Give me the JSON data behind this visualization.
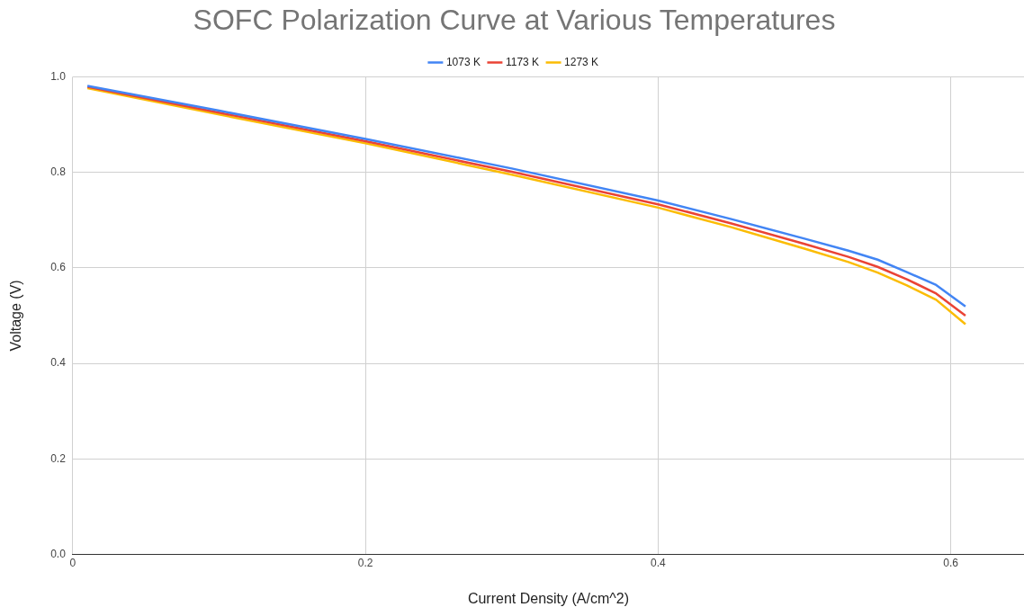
{
  "chart_data": {
    "type": "line",
    "title": "SOFC Polarization Curve at Various Temperatures",
    "xlabel": "Current Density (A/cm^2)",
    "ylabel": "Voltage (V)",
    "x": [
      0.01,
      0.1,
      0.2,
      0.3,
      0.4,
      0.45,
      0.5,
      0.53,
      0.55,
      0.57,
      0.59,
      0.61
    ],
    "series": [
      {
        "name": "1073 K",
        "color": "#4285f4",
        "values": [
          0.981,
          0.929,
          0.87,
          0.808,
          0.741,
          0.702,
          0.661,
          0.636,
          0.617,
          0.591,
          0.564,
          0.519
        ]
      },
      {
        "name": "1173 K",
        "color": "#ea4335",
        "values": [
          0.979,
          0.925,
          0.865,
          0.801,
          0.733,
          0.693,
          0.65,
          0.623,
          0.602,
          0.576,
          0.546,
          0.5
        ]
      },
      {
        "name": "1273 K",
        "color": "#fbbc04",
        "values": [
          0.976,
          0.921,
          0.861,
          0.795,
          0.726,
          0.685,
          0.64,
          0.612,
          0.59,
          0.563,
          0.533,
          0.482
        ]
      }
    ],
    "xlim": [
      0,
      0.65
    ],
    "xticks": [
      0.0,
      {
        "value": 0.2,
        "label": "0.2"
      },
      {
        "value": 0.4,
        "label": "0.4"
      },
      {
        "value": 0.6,
        "label": "0.6"
      }
    ],
    "ylim": [
      0,
      1
    ],
    "yticks": [
      {
        "value": 0,
        "label": "0.0"
      },
      {
        "value": 0.2,
        "label": "0.2"
      },
      {
        "value": 0.4,
        "label": "0.4"
      },
      {
        "value": 0.6,
        "label": "0.6"
      },
      {
        "value": 0.8,
        "label": "0.8"
      },
      {
        "value": 1,
        "label": "1.0"
      }
    ],
    "grid": true,
    "legend": "top",
    "marker": "none",
    "line_style": "solid"
  }
}
